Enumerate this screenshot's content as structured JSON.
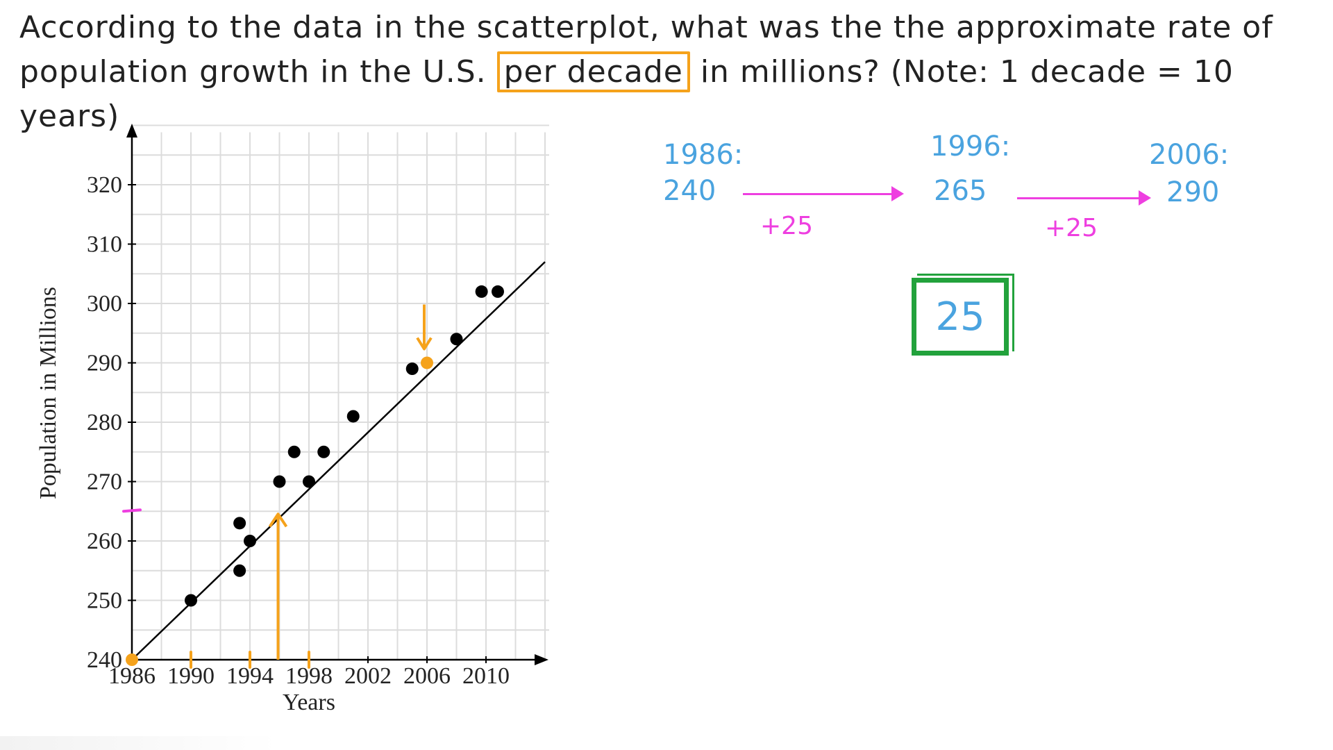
{
  "question": {
    "part1": "According to the data in the scatterplot, what was the the approximate rate of population growth in the U.S. ",
    "highlight": "per decade",
    "part2": " in millions? (Note: 1 decade = 10 years)"
  },
  "chart_data": {
    "type": "scatter",
    "xlabel": "Years",
    "ylabel": "Population in Millions",
    "x_ticks": [
      "1986",
      "1990",
      "1994",
      "1998",
      "2002",
      "2006",
      "2010"
    ],
    "y_ticks": [
      "240",
      "250",
      "260",
      "270",
      "280",
      "290",
      "300",
      "310",
      "320"
    ],
    "xlim": [
      1986,
      2014
    ],
    "ylim": [
      240,
      330
    ],
    "grid": true,
    "points": [
      {
        "x": 1990,
        "y": 250
      },
      {
        "x": 1993.3,
        "y": 255
      },
      {
        "x": 1993.3,
        "y": 263
      },
      {
        "x": 1994,
        "y": 260
      },
      {
        "x": 1996,
        "y": 270
      },
      {
        "x": 1997,
        "y": 275
      },
      {
        "x": 1998,
        "y": 270
      },
      {
        "x": 1999,
        "y": 275
      },
      {
        "x": 2001,
        "y": 281
      },
      {
        "x": 2005,
        "y": 289
      },
      {
        "x": 2008,
        "y": 294
      },
      {
        "x": 2009.7,
        "y": 302
      },
      {
        "x": 2010.8,
        "y": 302
      }
    ],
    "trend_line": {
      "x1": 1986,
      "y1": 240,
      "x2": 2014,
      "y2": 307
    },
    "highlight_points": [
      {
        "x": 1986,
        "y": 240
      },
      {
        "x": 2006,
        "y": 290
      }
    ],
    "x_markers": [
      1990,
      1994,
      1998
    ],
    "marker_arrow_up": {
      "x": 1996,
      "y": 265
    },
    "marker_arrow_down": {
      "x": 2006,
      "y": 290
    },
    "y_marker": 265,
    "colors": {
      "points": "#000000",
      "highlight": "#f5a21b",
      "marker": "#ee3fe0",
      "grid": "#dcdcdc"
    }
  },
  "work": {
    "step1_year": "1986:",
    "step1_value": "240",
    "step2_year": "1996:",
    "step2_value": "265",
    "step3_year": "2006:",
    "step3_value": "290",
    "diff1": "+25",
    "diff2": "+25",
    "answer": "25"
  }
}
